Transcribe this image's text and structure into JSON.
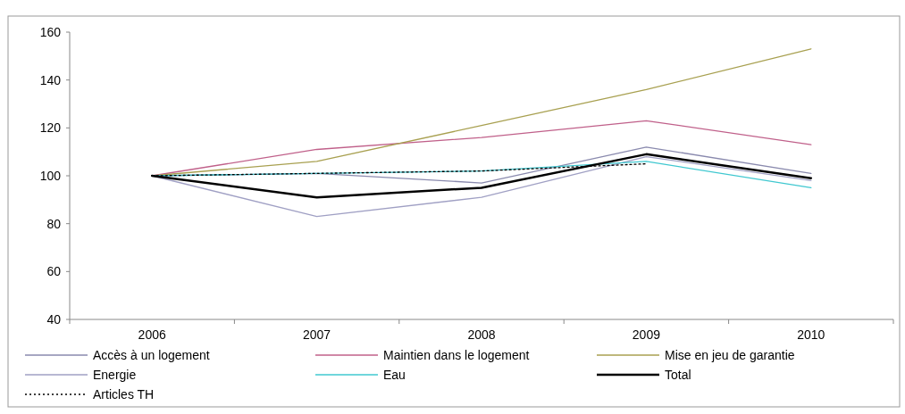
{
  "chart_data": {
    "type": "line",
    "categories": [
      "2006",
      "2007",
      "2008",
      "2009",
      "2010"
    ],
    "ylim": [
      40,
      160
    ],
    "yticks": [
      40,
      60,
      80,
      100,
      120,
      140,
      160
    ],
    "grid": false,
    "legend": "bottom",
    "series": [
      {
        "name": "Accès à un logement",
        "color": "#8a8aae",
        "values": [
          100,
          101,
          97,
          112,
          101
        ]
      },
      {
        "name": "Maintien dans le logement",
        "color": "#c0608a",
        "values": [
          100,
          111,
          116,
          123,
          113
        ]
      },
      {
        "name": "Mise en jeu de garantie",
        "color": "#a8a050",
        "values": [
          100,
          106,
          121,
          136,
          153
        ]
      },
      {
        "name": "Energie",
        "color": "#a0a0c4",
        "values": [
          100,
          83,
          91,
          108,
          98
        ]
      },
      {
        "name": "Eau",
        "color": "#40c8d0",
        "values": [
          100,
          101,
          102,
          106,
          95
        ]
      },
      {
        "name": "Total",
        "color": "#000000",
        "values": [
          100,
          91,
          95,
          109,
          99
        ]
      },
      {
        "name": "Articles TH",
        "color": "#000000",
        "line_style": "dotted",
        "values": [
          100,
          101,
          102,
          105,
          null
        ]
      }
    ]
  }
}
